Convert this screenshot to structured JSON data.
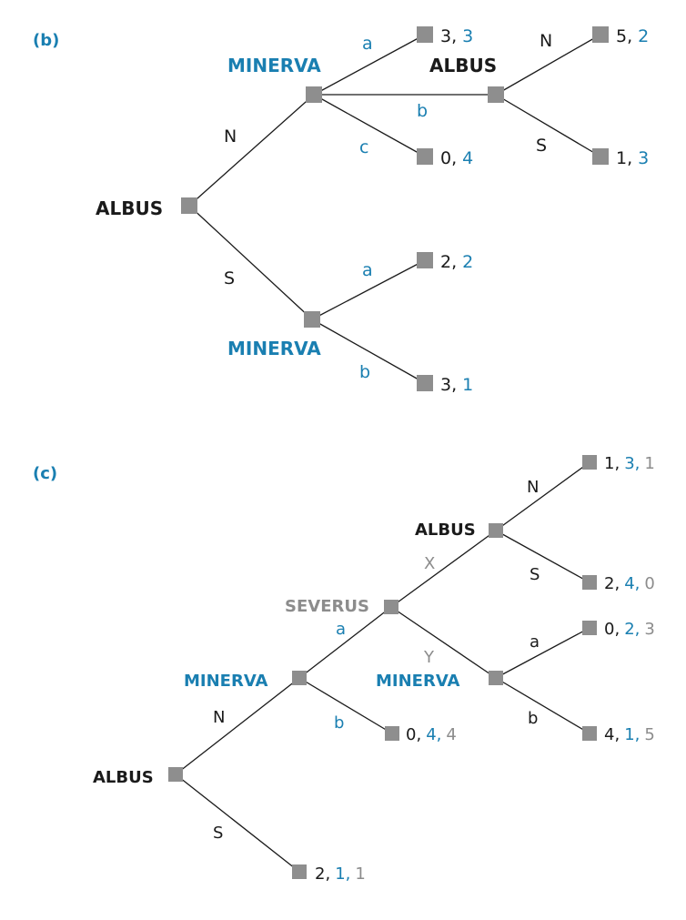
{
  "colors": {
    "black": "#1a1a1a",
    "blue": "#1a7fb1",
    "gray": "#8c8c8c",
    "node": "#8e8e8e"
  },
  "panel_b": {
    "label": "(b)",
    "players": {
      "root": "ALBUS",
      "minerva_top": "MINERVA",
      "albus_second": "ALBUS",
      "minerva_bottom": "MINERVA"
    },
    "moves": {
      "root_n": "N",
      "root_s": "S",
      "top_a": "a",
      "top_b": "b",
      "top_c": "c",
      "albus_n": "N",
      "albus_s": "S",
      "bottom_a": "a",
      "bottom_b": "b"
    },
    "payoffs": {
      "top_a": [
        "3,",
        "3"
      ],
      "top_c": [
        "0,",
        "4"
      ],
      "albus_n": [
        "5,",
        "2"
      ],
      "albus_s": [
        "1,",
        "3"
      ],
      "bottom_a": [
        "2,",
        "2"
      ],
      "bottom_b": [
        "3,",
        "1"
      ]
    }
  },
  "panel_c": {
    "label": "(c)",
    "players": {
      "root": "ALBUS",
      "minerva_first": "MINERVA",
      "severus": "SEVERUS",
      "albus_second": "ALBUS",
      "minerva_second": "MINERVA"
    },
    "moves": {
      "root_n": "N",
      "root_s": "S",
      "minerva_a": "a",
      "minerva_b": "b",
      "severus_x": "X",
      "severus_y": "Y",
      "albus_n": "N",
      "albus_s": "S",
      "minerva2_a": "a",
      "minerva2_b": "b"
    },
    "payoffs": {
      "albus_n": [
        "1,",
        "3,",
        "1"
      ],
      "albus_s": [
        "2,",
        "4,",
        "0"
      ],
      "minerva2_a": [
        "0,",
        "2,",
        "3"
      ],
      "minerva2_b": [
        "4,",
        "1,",
        "5"
      ],
      "minerva_b": [
        "0,",
        "4,",
        "4"
      ],
      "root_s": [
        "2,",
        "1,",
        "1"
      ]
    }
  }
}
